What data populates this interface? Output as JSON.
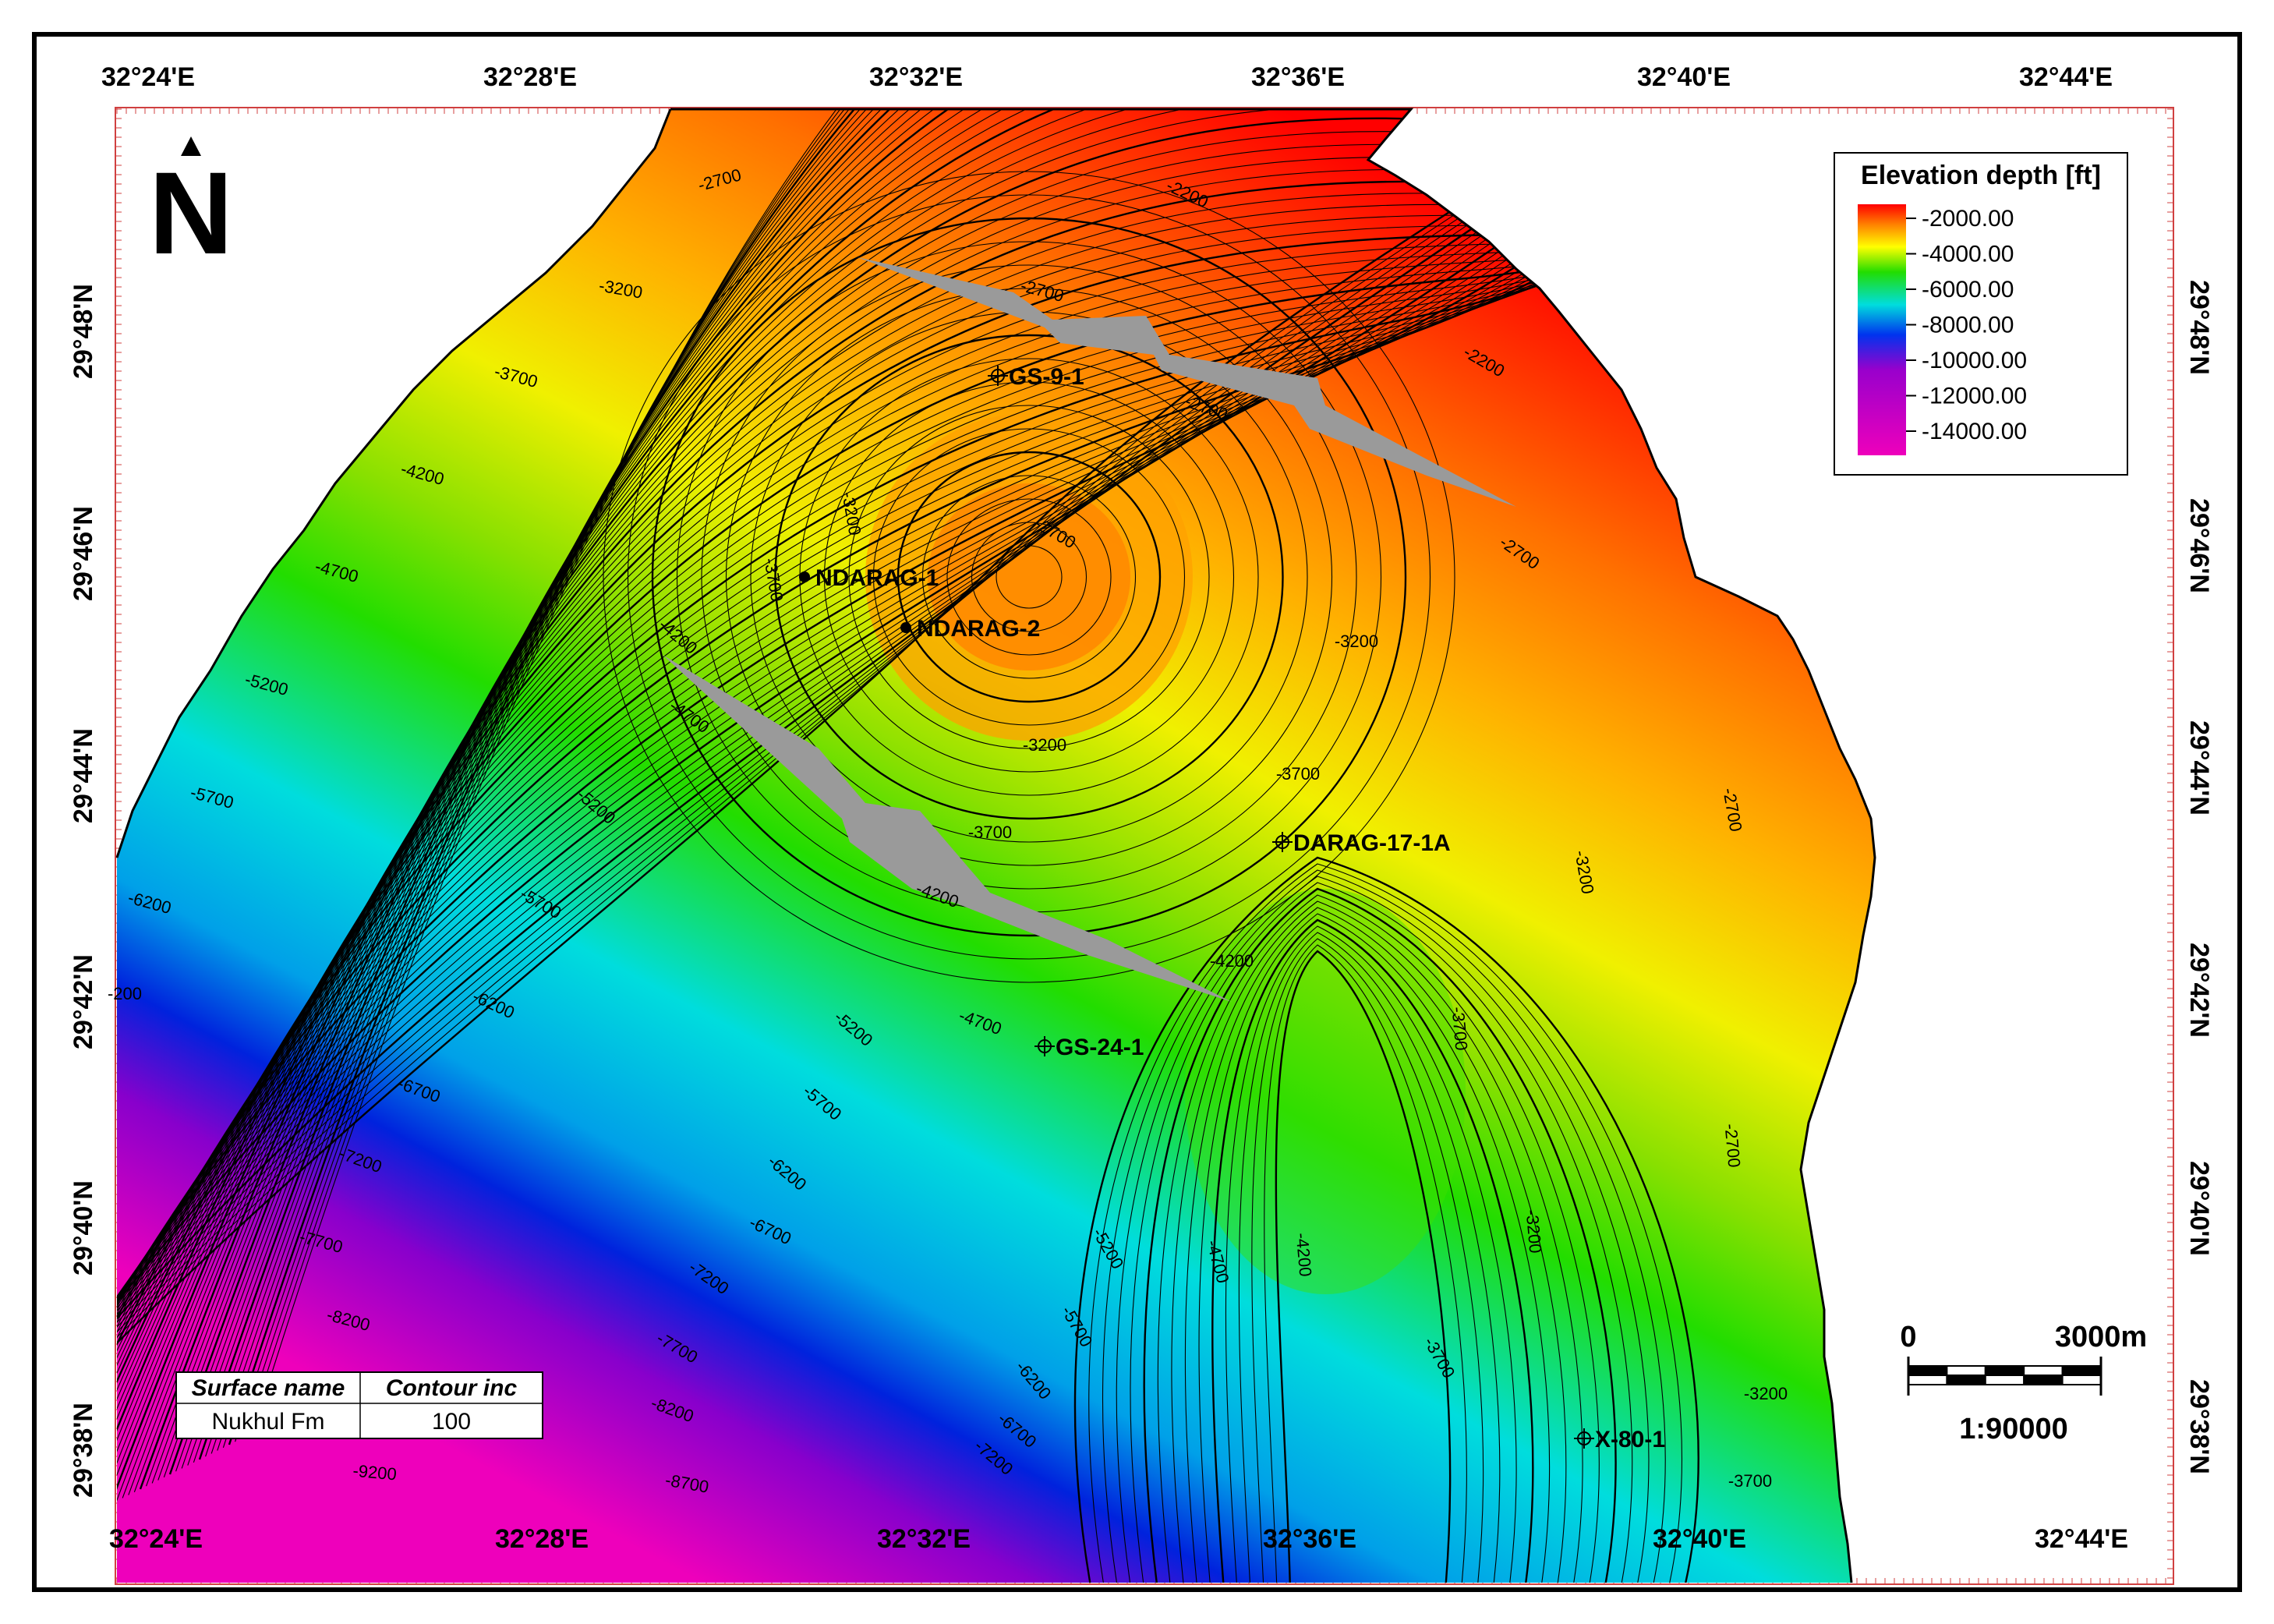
{
  "map": {
    "lon_labels": [
      "32°24'E",
      "32°28'E",
      "32°32'E",
      "32°36'E",
      "32°40'E",
      "32°44'E"
    ],
    "lat_labels": [
      "29°48'N",
      "29°46'N",
      "29°44'N",
      "29°42'N",
      "29°40'N",
      "29°38'N"
    ]
  },
  "north_arrow": {
    "letter": "N"
  },
  "legend": {
    "title": "Elevation depth [ft]",
    "entries": [
      "-2000.00",
      "-4000.00",
      "-6000.00",
      "-8000.00",
      "-10000.00",
      "-12000.00",
      "-14000.00"
    ],
    "colors": [
      "#ff0000",
      "#ffff00",
      "#22dd00",
      "#00dddd",
      "#0033ee",
      "#9900cc",
      "#ee00bb"
    ]
  },
  "scale_bar": {
    "start": "0",
    "end": "3000m",
    "ratio": "1:90000"
  },
  "info_table": {
    "headers": [
      "Surface name",
      "Contour inc"
    ],
    "values": [
      "Nukhul Fm",
      "100"
    ]
  },
  "wells": [
    {
      "name": "GS-9-1",
      "symbol": "crosshair-circle"
    },
    {
      "name": "NDARAG-1",
      "symbol": "dot"
    },
    {
      "name": "NDARAG-2",
      "symbol": "dot"
    },
    {
      "name": "DARAG-17-1A",
      "symbol": "crosshair-circle"
    },
    {
      "name": "GS-24-1",
      "symbol": "crosshair-circle"
    },
    {
      "name": "X-80-1",
      "symbol": "crosshair-circle"
    }
  ],
  "contour_labels": [
    "-2700",
    "-2200",
    "-3200",
    "-2700",
    "-2200",
    "-3700",
    "-2700",
    "-4200",
    "-3200",
    "-2700",
    "-2700",
    "-4700",
    "-3700",
    "-4200",
    "-3200",
    "-5200",
    "-4700",
    "-3200",
    "-5700",
    "-5200",
    "-3700",
    "-3700",
    "-2700",
    "-6200",
    "-4200",
    "-5700",
    "-3200",
    "-4200",
    "-4700",
    "-6200",
    "-5200",
    "-3700",
    "-6700",
    "-5700",
    "-2700",
    "-7200",
    "-6200",
    "-6700",
    "-4700",
    "-7700",
    "-7200",
    "-5200",
    "-3200",
    "-8200",
    "-7700",
    "-5700",
    "-4200",
    "-3700",
    "-8200",
    "-6200",
    "-3200",
    "-9200",
    "-8700",
    "-7200",
    "-6700",
    "-3700",
    "-200"
  ],
  "colors": {
    "fault": "#9a9a9a",
    "background": "#ffffff",
    "frame": "#000000"
  }
}
